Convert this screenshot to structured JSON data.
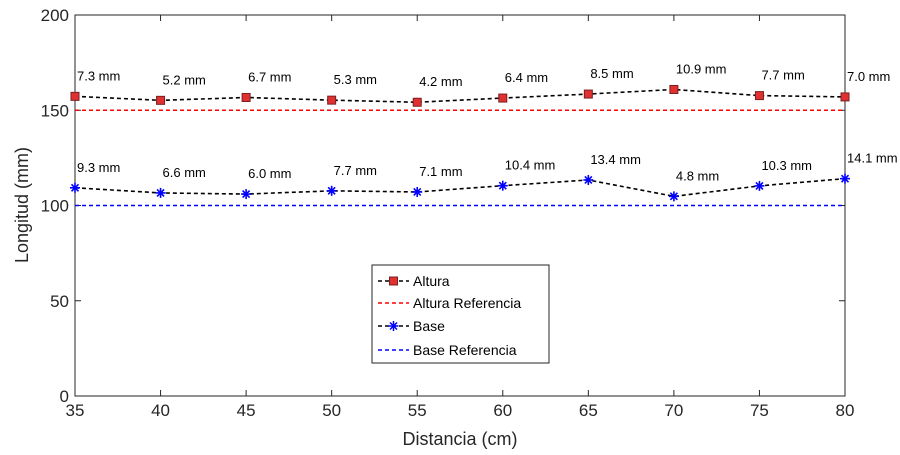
{
  "chart_data": {
    "type": "line",
    "xlabel": "Distancia (cm)",
    "ylabel": "Longitud (mm)",
    "xlim": [
      35,
      80
    ],
    "ylim": [
      0,
      200
    ],
    "x_ticks": [
      35,
      40,
      45,
      50,
      55,
      60,
      65,
      70,
      75,
      80
    ],
    "y_ticks": [
      0,
      50,
      100,
      150,
      200
    ],
    "grid": false,
    "legend_position": "bottom-center",
    "x": [
      35,
      40,
      45,
      50,
      55,
      60,
      65,
      70,
      75,
      80
    ],
    "series": [
      {
        "name": "Altura",
        "values": [
          157.3,
          155.2,
          156.7,
          155.3,
          154.2,
          156.4,
          158.5,
          160.9,
          157.7,
          157.0
        ],
        "labels": [
          "7.3 mm",
          "5.2 mm",
          "6.7 mm",
          "5.3 mm",
          "4.2 mm",
          "6.4 mm",
          "8.5 mm",
          "10.9 mm",
          "7.7 mm",
          "7.0 mm"
        ],
        "line_color": "#000000",
        "marker": "square",
        "marker_color": "#e03030",
        "line_style": "dashed"
      },
      {
        "name": "Altura Referencia",
        "values": [
          150,
          150,
          150,
          150,
          150,
          150,
          150,
          150,
          150,
          150
        ],
        "line_color": "#ff0000",
        "marker": "none",
        "line_style": "dashed"
      },
      {
        "name": "Base",
        "values": [
          109.3,
          106.6,
          106.0,
          107.7,
          107.1,
          110.4,
          113.4,
          104.8,
          110.3,
          114.1
        ],
        "labels": [
          "9.3 mm",
          "6.6 mm",
          "6.0 mm",
          "7.7 mm",
          "7.1 mm",
          "10.4 mm",
          "13.4 mm",
          "4.8 mm",
          "10.3 mm",
          "14.1 mm"
        ],
        "line_color": "#000000",
        "marker": "asterisk",
        "marker_color": "#0000ff",
        "line_style": "dashed"
      },
      {
        "name": "Base Referencia",
        "values": [
          100,
          100,
          100,
          100,
          100,
          100,
          100,
          100,
          100,
          100
        ],
        "line_color": "#0000ff",
        "marker": "none",
        "line_style": "dashed"
      }
    ]
  }
}
